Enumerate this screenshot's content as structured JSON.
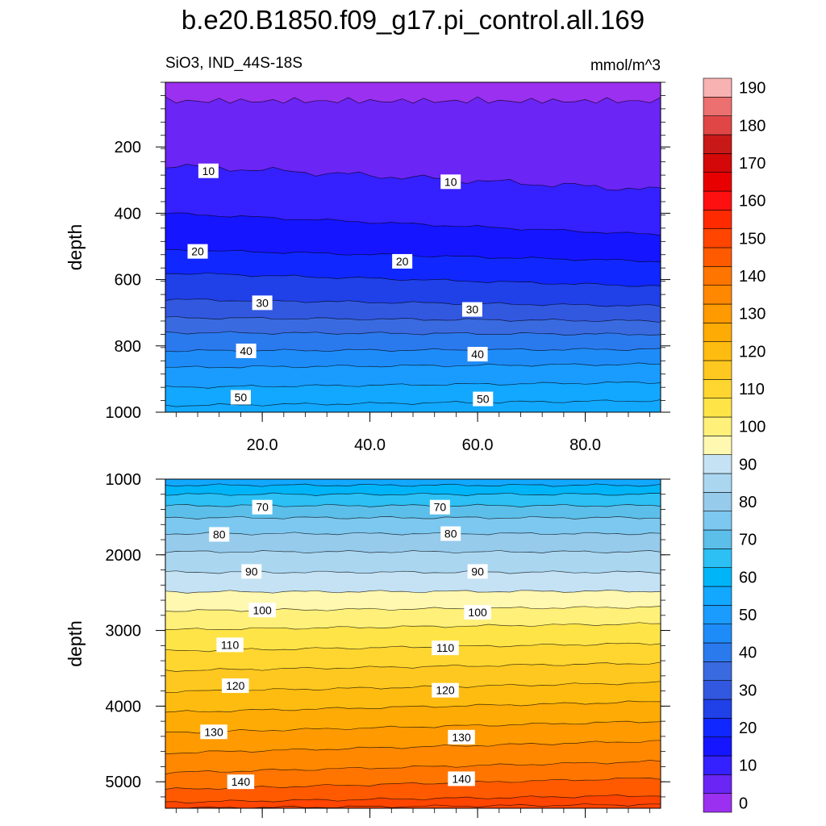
{
  "title": "b.e20.B1850.f09_g17.pi_control.all.169",
  "variable_label": "SiO3, IND_44S-18S",
  "units_label": "mmol/m^3",
  "chart_data": {
    "type": "contour",
    "title": "b.e20.B1850.f09_g17.pi_control.all.169",
    "subtitle_left": "SiO3, IND_44S-18S",
    "subtitle_right": "mmol/m^3",
    "xlabel": "",
    "xlim": [
      2,
      94
    ],
    "xticks": [
      20,
      40,
      60,
      80
    ],
    "xtick_labels": [
      "20.0",
      "40.0",
      "60.0",
      "80.0"
    ],
    "panels": [
      {
        "name": "upper",
        "ylabel": "depth",
        "ylim": [
          5,
          1000
        ],
        "y_inverted": true,
        "yticks": [
          200,
          400,
          600,
          800,
          1000
        ],
        "ytick_labels": [
          "200",
          "400",
          "600",
          "800",
          "1000"
        ],
        "levels": [
          0,
          5,
          10,
          15,
          20,
          25,
          30,
          35,
          40,
          45,
          50,
          55
        ],
        "contour_depths": [
          [
            30,
            30
          ],
          [
            255,
            330
          ],
          [
            400,
            465
          ],
          [
            510,
            545
          ],
          [
            580,
            620
          ],
          [
            660,
            680
          ],
          [
            715,
            725
          ],
          [
            760,
            765
          ],
          [
            815,
            810
          ],
          [
            865,
            855
          ],
          [
            925,
            910
          ],
          [
            980,
            965
          ]
        ],
        "labels": [
          {
            "text": "10",
            "x": 10,
            "depth": 272
          },
          {
            "text": "10",
            "x": 55,
            "depth": 305
          },
          {
            "text": "20",
            "x": 8,
            "depth": 515
          },
          {
            "text": "20",
            "x": 46,
            "depth": 545
          },
          {
            "text": "30",
            "x": 20,
            "depth": 670
          },
          {
            "text": "30",
            "x": 59,
            "depth": 690
          },
          {
            "text": "40",
            "x": 17,
            "depth": 815
          },
          {
            "text": "40",
            "x": 60,
            "depth": 825
          },
          {
            "text": "50",
            "x": 16,
            "depth": 955
          },
          {
            "text": "50",
            "x": 61,
            "depth": 960
          }
        ]
      },
      {
        "name": "lower",
        "ylabel": "depth",
        "ylim": [
          1000,
          5350
        ],
        "y_inverted": true,
        "yticks": [
          1000,
          2000,
          3000,
          4000,
          5000
        ],
        "ytick_labels": [
          "1000",
          "2000",
          "3000",
          "4000",
          "5000"
        ],
        "levels": [
          55,
          60,
          65,
          70,
          75,
          80,
          85,
          90,
          95,
          100,
          105,
          110,
          115,
          120,
          125,
          130,
          135,
          140,
          145,
          150
        ],
        "contour_depths": [
          [
            1080,
            1080
          ],
          [
            1200,
            1200
          ],
          [
            1350,
            1350
          ],
          [
            1510,
            1510
          ],
          [
            1720,
            1720
          ],
          [
            1960,
            1960
          ],
          [
            2230,
            2230
          ],
          [
            2490,
            2480
          ],
          [
            2740,
            2690
          ],
          [
            2990,
            2910
          ],
          [
            3270,
            3170
          ],
          [
            3530,
            3430
          ],
          [
            3810,
            3690
          ],
          [
            4080,
            3940
          ],
          [
            4350,
            4200
          ],
          [
            4620,
            4460
          ],
          [
            4880,
            4730
          ],
          [
            5100,
            4950
          ],
          [
            5270,
            5180
          ],
          [
            5350,
            5300
          ]
        ],
        "labels": [
          {
            "text": "70",
            "x": 20,
            "depth": 1370
          },
          {
            "text": "70",
            "x": 53,
            "depth": 1370
          },
          {
            "text": "80",
            "x": 12,
            "depth": 1730
          },
          {
            "text": "80",
            "x": 55,
            "depth": 1720
          },
          {
            "text": "90",
            "x": 18,
            "depth": 2220
          },
          {
            "text": "90",
            "x": 60,
            "depth": 2220
          },
          {
            "text": "100",
            "x": 20,
            "depth": 2730
          },
          {
            "text": "100",
            "x": 60,
            "depth": 2760
          },
          {
            "text": "110",
            "x": 14,
            "depth": 3190
          },
          {
            "text": "110",
            "x": 54,
            "depth": 3230
          },
          {
            "text": "120",
            "x": 15,
            "depth": 3730
          },
          {
            "text": "120",
            "x": 54,
            "depth": 3790
          },
          {
            "text": "130",
            "x": 11,
            "depth": 4340
          },
          {
            "text": "130",
            "x": 57,
            "depth": 4410
          },
          {
            "text": "140",
            "x": 16,
            "depth": 5000
          },
          {
            "text": "140",
            "x": 57,
            "depth": 4960
          }
        ]
      }
    ],
    "colorbar": {
      "levels": [
        0,
        5,
        10,
        15,
        20,
        25,
        30,
        35,
        40,
        45,
        50,
        55,
        60,
        65,
        70,
        75,
        80,
        85,
        90,
        95,
        100,
        105,
        110,
        115,
        120,
        125,
        130,
        135,
        140,
        145,
        150,
        155,
        160,
        165,
        170,
        175,
        180,
        185,
        190,
        195
      ],
      "labels": [
        "0",
        "10",
        "20",
        "30",
        "40",
        "50",
        "60",
        "70",
        "80",
        "90",
        "100",
        "110",
        "120",
        "130",
        "140",
        "150",
        "160",
        "170",
        "180",
        "190"
      ],
      "colors": [
        "#9b30f0",
        "#6b25f5",
        "#3520ff",
        "#1515ff",
        "#1028ff",
        "#2040e8",
        "#3258e0",
        "#3a6ae0",
        "#2a7aee",
        "#1e8cf8",
        "#1a9cff",
        "#12a8ff",
        "#00b4f8",
        "#2cc0f5",
        "#5cbfea",
        "#7cc8f0",
        "#96cbec",
        "#aad6f0",
        "#c4e2f4",
        "#fff8b0",
        "#fff07a",
        "#ffe448",
        "#ffd630",
        "#ffc820",
        "#ffbc10",
        "#ffab05",
        "#ff9a00",
        "#ff8800",
        "#ff7500",
        "#ff5a00",
        "#ff4500",
        "#ff2a00",
        "#ff1010",
        "#e80000",
        "#d40808",
        "#c81818",
        "#e04646",
        "#ec7070",
        "#f8b2b2"
      ]
    }
  }
}
